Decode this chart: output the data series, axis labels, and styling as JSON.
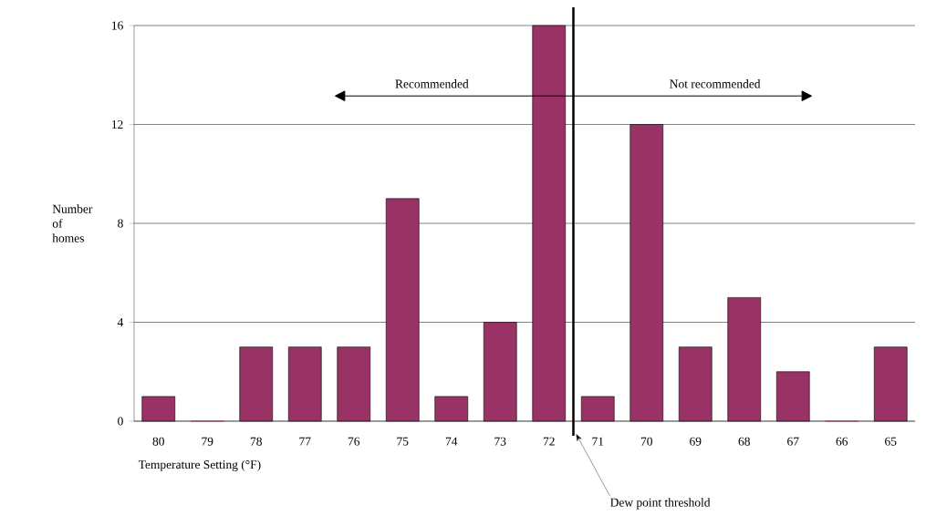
{
  "chart_data": {
    "type": "bar",
    "xlabel": "Temperature Setting (°F)",
    "ylabel": "Number of homes",
    "x": [
      80,
      79,
      78,
      77,
      76,
      75,
      74,
      73,
      72,
      71,
      70,
      69,
      68,
      67,
      66,
      65
    ],
    "values": [
      1,
      0,
      3,
      3,
      3,
      9,
      1,
      4,
      16,
      1,
      12,
      3,
      5,
      2,
      0,
      3
    ],
    "color": "#993366",
    "xlim": [
      80.5,
      64.5
    ],
    "xticks": [
      80,
      79,
      78,
      77,
      76,
      75,
      74,
      73,
      72,
      71,
      70,
      69,
      68,
      67,
      66,
      65
    ],
    "ylim": [
      0,
      16
    ],
    "yticks": [
      0,
      4,
      8,
      12,
      16
    ],
    "grid": "y",
    "ref_lines": [
      {
        "axis": "x",
        "value": 71.5,
        "label": "Dew point threshold",
        "color": "#000000"
      }
    ],
    "annotations": [
      "Recommended",
      "Not recommended"
    ]
  }
}
